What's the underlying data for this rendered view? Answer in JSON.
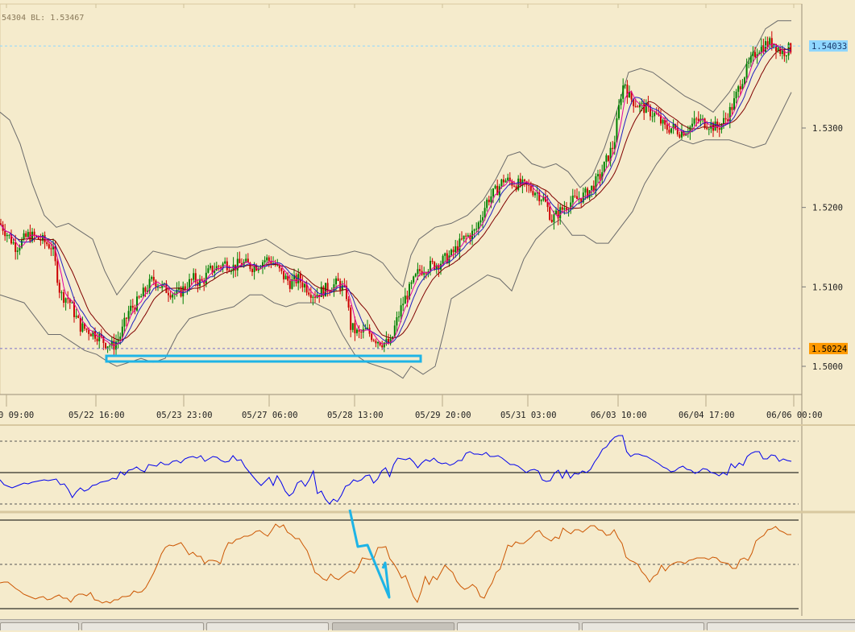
{
  "header": {
    "text": "54304   BL: 1.53467"
  },
  "chart_data": [
    {
      "type": "candlestick",
      "panel": "price",
      "y_ticks": [
        1.5,
        1.51,
        1.52,
        1.53
      ],
      "y_tick_labels": [
        "1.5000",
        "1.5100",
        "1.5200",
        "1.5300"
      ],
      "ylim": [
        1.4955,
        1.546
      ],
      "x_tick_labels": [
        "0  09:00",
        "05/22 16:00",
        "05/23 23:00",
        "05/27 06:00",
        "05/28 13:00",
        "05/29 20:00",
        "05/31 03:00",
        "06/03 10:00",
        "06/04 17:00",
        "06/06 00:00"
      ],
      "price_lines": [
        {
          "label": "1.54033",
          "value": 1.54033,
          "color": "#8fd6ff",
          "text_color": "#1a3a6a",
          "style": "dashed"
        },
        {
          "label": "1.50224",
          "value": 1.50224,
          "color": "#ff9900",
          "text_color": "#000000",
          "style": "dashed"
        }
      ],
      "close_path": [
        [
          0,
          1.518
        ],
        [
          20,
          1.515
        ],
        [
          35,
          1.5165
        ],
        [
          50,
          1.516
        ],
        [
          65,
          1.515
        ],
        [
          75,
          1.509
        ],
        [
          85,
          1.5085
        ],
        [
          95,
          1.506
        ],
        [
          100,
          1.505
        ],
        [
          110,
          1.5045
        ],
        [
          120,
          1.504
        ],
        [
          130,
          1.503
        ],
        [
          140,
          1.5025
        ],
        [
          150,
          1.504
        ],
        [
          160,
          1.507
        ],
        [
          170,
          1.508
        ],
        [
          180,
          1.5095
        ],
        [
          190,
          1.511
        ],
        [
          200,
          1.51
        ],
        [
          210,
          1.5095
        ],
        [
          220,
          1.509
        ],
        [
          230,
          1.51
        ],
        [
          240,
          1.511
        ],
        [
          250,
          1.5105
        ],
        [
          260,
          1.512
        ],
        [
          270,
          1.5125
        ],
        [
          280,
          1.513
        ],
        [
          290,
          1.5125
        ],
        [
          300,
          1.513
        ],
        [
          315,
          1.5125
        ],
        [
          330,
          1.5135
        ],
        [
          340,
          1.513
        ],
        [
          350,
          1.5115
        ],
        [
          360,
          1.5105
        ],
        [
          370,
          1.511
        ],
        [
          380,
          1.51
        ],
        [
          390,
          1.509
        ],
        [
          400,
          1.5095
        ],
        [
          410,
          1.51
        ],
        [
          420,
          1.5105
        ],
        [
          430,
          1.509
        ],
        [
          435,
          1.505
        ],
        [
          445,
          1.504
        ],
        [
          455,
          1.5045
        ],
        [
          465,
          1.5035
        ],
        [
          475,
          1.503
        ],
        [
          485,
          1.5028
        ],
        [
          490,
          1.505
        ],
        [
          500,
          1.508
        ],
        [
          510,
          1.51
        ],
        [
          520,
          1.512
        ],
        [
          530,
          1.5125
        ],
        [
          545,
          1.513
        ],
        [
          560,
          1.514
        ],
        [
          575,
          1.516
        ],
        [
          590,
          1.517
        ],
        [
          605,
          1.521
        ],
        [
          615,
          1.522
        ],
        [
          625,
          1.5235
        ],
        [
          640,
          1.523
        ],
        [
          655,
          1.5225
        ],
        [
          665,
          1.522
        ],
        [
          675,
          1.521
        ],
        [
          685,
          1.5185
        ],
        [
          695,
          1.5195
        ],
        [
          705,
          1.5205
        ],
        [
          715,
          1.521
        ],
        [
          725,
          1.5215
        ],
        [
          735,
          1.5225
        ],
        [
          745,
          1.524
        ],
        [
          755,
          1.5265
        ],
        [
          762,
          1.528
        ],
        [
          770,
          1.534
        ],
        [
          775,
          1.536
        ],
        [
          780,
          1.534
        ],
        [
          790,
          1.533
        ],
        [
          800,
          1.5325
        ],
        [
          815,
          1.5315
        ],
        [
          825,
          1.53
        ],
        [
          835,
          1.53
        ],
        [
          845,
          1.5295
        ],
        [
          855,
          1.53
        ],
        [
          865,
          1.531
        ],
        [
          880,
          1.5305
        ],
        [
          890,
          1.53
        ],
        [
          900,
          1.531
        ],
        [
          910,
          1.533
        ],
        [
          920,
          1.536
        ],
        [
          930,
          1.538
        ],
        [
          940,
          1.54
        ],
        [
          950,
          1.5405
        ],
        [
          960,
          1.5408
        ],
        [
          970,
          1.5395
        ],
        [
          980,
          1.54
        ]
      ],
      "bollinger_upper": [
        [
          0,
          1.532
        ],
        [
          12,
          1.531
        ],
        [
          25,
          1.528
        ],
        [
          40,
          1.523
        ],
        [
          55,
          1.519
        ],
        [
          70,
          1.5175
        ],
        [
          85,
          1.518
        ],
        [
          100,
          1.517
        ],
        [
          115,
          1.516
        ],
        [
          130,
          1.512
        ],
        [
          145,
          1.509
        ],
        [
          160,
          1.511
        ],
        [
          175,
          1.513
        ],
        [
          190,
          1.5145
        ],
        [
          210,
          1.514
        ],
        [
          230,
          1.5135
        ],
        [
          250,
          1.5145
        ],
        [
          270,
          1.515
        ],
        [
          295,
          1.515
        ],
        [
          315,
          1.5155
        ],
        [
          330,
          1.516
        ],
        [
          345,
          1.515
        ],
        [
          360,
          1.514
        ],
        [
          380,
          1.5135
        ],
        [
          400,
          1.5138
        ],
        [
          420,
          1.514
        ],
        [
          440,
          1.5145
        ],
        [
          460,
          1.514
        ],
        [
          475,
          1.513
        ],
        [
          490,
          1.511
        ],
        [
          500,
          1.51
        ],
        [
          510,
          1.514
        ],
        [
          520,
          1.516
        ],
        [
          540,
          1.5175
        ],
        [
          560,
          1.518
        ],
        [
          580,
          1.519
        ],
        [
          600,
          1.521
        ],
        [
          615,
          1.5235
        ],
        [
          630,
          1.5265
        ],
        [
          645,
          1.527
        ],
        [
          660,
          1.5255
        ],
        [
          675,
          1.525
        ],
        [
          690,
          1.5255
        ],
        [
          705,
          1.5245
        ],
        [
          720,
          1.5225
        ],
        [
          735,
          1.524
        ],
        [
          750,
          1.5275
        ],
        [
          765,
          1.532
        ],
        [
          780,
          1.537
        ],
        [
          795,
          1.5375
        ],
        [
          810,
          1.537
        ],
        [
          830,
          1.5355
        ],
        [
          850,
          1.534
        ],
        [
          870,
          1.533
        ],
        [
          885,
          1.532
        ],
        [
          905,
          1.5345
        ],
        [
          920,
          1.537
        ],
        [
          935,
          1.5395
        ],
        [
          950,
          1.5425
        ],
        [
          965,
          1.5435
        ],
        [
          982,
          1.5435
        ]
      ],
      "bollinger_lower": [
        [
          0,
          1.509
        ],
        [
          15,
          1.5085
        ],
        [
          30,
          1.508
        ],
        [
          45,
          1.506
        ],
        [
          60,
          1.504
        ],
        [
          75,
          1.504
        ],
        [
          90,
          1.503
        ],
        [
          105,
          1.502
        ],
        [
          120,
          1.5015
        ],
        [
          135,
          1.5005
        ],
        [
          145,
          1.5
        ],
        [
          160,
          1.5005
        ],
        [
          175,
          1.501
        ],
        [
          190,
          1.5005
        ],
        [
          205,
          1.501
        ],
        [
          220,
          1.504
        ],
        [
          235,
          1.506
        ],
        [
          250,
          1.5065
        ],
        [
          270,
          1.507
        ],
        [
          290,
          1.5075
        ],
        [
          310,
          1.509
        ],
        [
          325,
          1.509
        ],
        [
          340,
          1.508
        ],
        [
          355,
          1.5075
        ],
        [
          370,
          1.508
        ],
        [
          390,
          1.508
        ],
        [
          410,
          1.507
        ],
        [
          425,
          1.504
        ],
        [
          440,
          1.5015
        ],
        [
          455,
          1.5005
        ],
        [
          470,
          1.5
        ],
        [
          485,
          1.4995
        ],
        [
          500,
          1.4985
        ],
        [
          510,
          1.5
        ],
        [
          525,
          1.499
        ],
        [
          540,
          1.5
        ],
        [
          550,
          1.504
        ],
        [
          560,
          1.5085
        ],
        [
          575,
          1.5095
        ],
        [
          590,
          1.5105
        ],
        [
          605,
          1.5115
        ],
        [
          620,
          1.511
        ],
        [
          635,
          1.5095
        ],
        [
          650,
          1.5135
        ],
        [
          665,
          1.516
        ],
        [
          680,
          1.5175
        ],
        [
          695,
          1.5185
        ],
        [
          710,
          1.5165
        ],
        [
          725,
          1.5165
        ],
        [
          740,
          1.5155
        ],
        [
          755,
          1.5155
        ],
        [
          770,
          1.5175
        ],
        [
          785,
          1.5195
        ],
        [
          800,
          1.523
        ],
        [
          815,
          1.5255
        ],
        [
          830,
          1.5275
        ],
        [
          845,
          1.5285
        ],
        [
          860,
          1.528
        ],
        [
          875,
          1.5285
        ],
        [
          890,
          1.5285
        ],
        [
          905,
          1.5285
        ],
        [
          920,
          1.528
        ],
        [
          935,
          1.5275
        ],
        [
          950,
          1.528
        ],
        [
          965,
          1.531
        ],
        [
          982,
          1.5345
        ]
      ]
    },
    {
      "type": "line",
      "panel": "oscillator-1",
      "color": "#0000ee",
      "values": [
        596,
        602,
        604,
        606,
        604,
        602,
        600,
        601,
        599,
        598,
        597,
        596,
        597,
        596,
        595,
        602,
        601,
        608,
        618,
        611,
        606,
        610,
        608,
        603,
        602,
        599,
        598,
        597,
        594,
        595,
        586,
        590,
        584,
        583,
        580,
        584,
        586,
        577,
        578,
        579,
        574,
        577,
        577,
        573,
        572,
        575,
        570,
        568,
        567,
        569,
        566,
        573,
        570,
        567,
        568,
        572,
        574,
        573,
        566,
        572,
        571,
        580,
        586,
        592,
        598,
        603,
        598,
        593,
        603,
        591,
        599,
        610,
        616,
        612,
        600,
        597,
        604,
        596,
        585,
        613,
        610,
        620,
        626,
        620,
        623,
        615,
        604,
        602,
        596,
        598,
        596,
        591,
        590,
        600,
        595,
        585,
        581,
        592,
        577,
        569,
        570,
        571,
        569,
        574,
        581,
        575,
        571,
        573,
        569,
        574,
        576,
        575,
        578,
        576,
        572,
        572,
        563,
        561,
        564,
        564,
        565,
        562,
        567,
        567,
        566,
        569,
        573,
        577,
        577,
        579,
        583,
        587,
        584,
        583,
        585,
        596,
        598,
        597,
        588,
        584,
        594,
        584,
        594,
        588,
        589,
        585,
        587,
        583,
        574,
        567,
        558,
        555,
        548,
        543,
        541,
        541,
        561,
        567,
        564,
        564,
        566,
        567,
        570,
        573,
        576,
        580,
        582,
        586,
        585,
        581,
        579,
        583,
        584,
        588,
        586,
        582,
        583,
        587,
        588,
        591,
        587,
        590,
        576,
        581,
        575,
        578,
        567,
        563,
        561,
        561,
        570,
        570,
        565,
        566,
        573,
        570,
        572,
        573
      ]
    },
    {
      "type": "line",
      "panel": "oscillator-2",
      "color": "#cc5500",
      "values": [
        724,
        723,
        723,
        727,
        731,
        734,
        738,
        740,
        742,
        744,
        742,
        741,
        745,
        744,
        741,
        739,
        743,
        743,
        748,
        741,
        738,
        738,
        740,
        736,
        745,
        746,
        749,
        747,
        749,
        745,
        745,
        741,
        741,
        740,
        734,
        736,
        735,
        730,
        721,
        712,
        701,
        688,
        680,
        677,
        678,
        676,
        674,
        681,
        689,
        686,
        691,
        691,
        700,
        696,
        696,
        697,
        700,
        684,
        674,
        675,
        670,
        669,
        666,
        666,
        664,
        660,
        659,
        663,
        666,
        659,
        651,
        655,
        652,
        661,
        664,
        669,
        669,
        677,
        684,
        697,
        711,
        714,
        719,
        721,
        713,
        718,
        720,
        716,
        712,
        709,
        712,
        705,
        693,
        694,
        695,
        693,
        680,
        680,
        679,
        694,
        700,
        708,
        718,
        715,
        728,
        741,
        748,
        734,
        716,
        726,
        716,
        720,
        711,
        702,
        707,
        711,
        722,
        728,
        732,
        730,
        726,
        730,
        741,
        743,
        732,
        724,
        711,
        707,
        692,
        677,
        679,
        673,
        675,
        675,
        671,
        667,
        661,
        659,
        666,
        669,
        672,
        667,
        669,
        656,
        660,
        663,
        658,
        658,
        661,
        657,
        653,
        653,
        658,
        659,
        665,
        664,
        658,
        668,
        675,
        692,
        696,
        698,
        701,
        710,
        715,
        723,
        716,
        713,
        702,
        709,
        703,
        700,
        698,
        698,
        700,
        696,
        695,
        693,
        693,
        693,
        695,
        692,
        693,
        698,
        699,
        700,
        706,
        706,
        695,
        693,
        696,
        687,
        672,
        668,
        665,
        658,
        657,
        654,
        659,
        661,
        664,
        664
      ]
    }
  ],
  "colors": {
    "background": "#f5ebcc",
    "bull_candle": "#008000",
    "bear_candle": "#cc0000",
    "bollinger": "#6b6b6b",
    "ma_fast": "#e000a0",
    "ma_mid": "#2020c0",
    "ma_slow": "#800000",
    "annotation": "#1eb4e6"
  },
  "icons": [
    "taskbar-tab-icon"
  ]
}
